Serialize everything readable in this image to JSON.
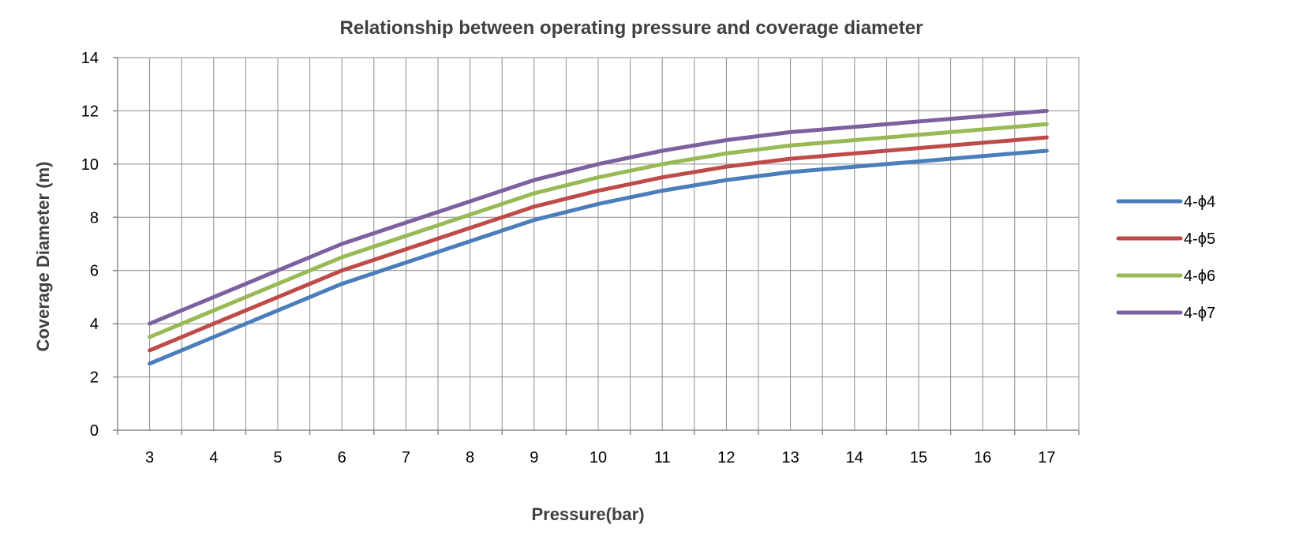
{
  "chart_data": {
    "type": "line",
    "title": "Relationship between operating pressure and coverage diameter",
    "xlabel": "Pressure(bar)",
    "ylabel": "Coverage Diameter (m)",
    "x": [
      3,
      4,
      5,
      6,
      7,
      8,
      9,
      10,
      11,
      12,
      13,
      14,
      15,
      16,
      17
    ],
    "ylim": [
      0,
      14
    ],
    "yticks": [
      0,
      2,
      4,
      6,
      8,
      10,
      12,
      14
    ],
    "grid": true,
    "legend_position": "right",
    "series": [
      {
        "name": "4-ϕ4",
        "color": "#4a7ebb",
        "values": [
          2.5,
          3.5,
          4.5,
          5.5,
          6.3,
          7.1,
          7.9,
          8.5,
          9.0,
          9.4,
          9.7,
          9.9,
          10.1,
          10.3,
          10.5
        ]
      },
      {
        "name": "4-ϕ5",
        "color": "#be4b48",
        "values": [
          3.0,
          4.0,
          5.0,
          6.0,
          6.8,
          7.6,
          8.4,
          9.0,
          9.5,
          9.9,
          10.2,
          10.4,
          10.6,
          10.8,
          11.0
        ]
      },
      {
        "name": "4-ϕ6",
        "color": "#98b954",
        "values": [
          3.5,
          4.5,
          5.5,
          6.5,
          7.3,
          8.1,
          8.9,
          9.5,
          10.0,
          10.4,
          10.7,
          10.9,
          11.1,
          11.3,
          11.5
        ]
      },
      {
        "name": "4-ϕ7",
        "color": "#7d60a0",
        "values": [
          4.0,
          5.0,
          6.0,
          7.0,
          7.8,
          8.6,
          9.4,
          10.0,
          10.5,
          10.9,
          11.2,
          11.4,
          11.6,
          11.8,
          12.0
        ]
      }
    ]
  }
}
